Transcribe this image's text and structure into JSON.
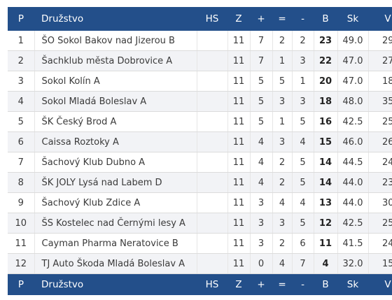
{
  "table": {
    "headers": {
      "pos": "P",
      "team": "Družstvo",
      "hs": "HS",
      "z": "Z",
      "plus": "+",
      "eq": "=",
      "minus": "-",
      "b": "B",
      "sk": "Sk",
      "v": "V"
    },
    "rows": [
      {
        "pos": "1",
        "team": "ŠO Sokol Bakov nad Jizerou B",
        "hs": "",
        "z": "11",
        "plus": "7",
        "eq": "2",
        "minus": "2",
        "b": "23",
        "sk": "49.0",
        "v": "29"
      },
      {
        "pos": "2",
        "team": "Šachklub města Dobrovice A",
        "hs": "",
        "z": "11",
        "plus": "7",
        "eq": "1",
        "minus": "3",
        "b": "22",
        "sk": "47.0",
        "v": "27"
      },
      {
        "pos": "3",
        "team": "Sokol Kolín A",
        "hs": "",
        "z": "11",
        "plus": "5",
        "eq": "5",
        "minus": "1",
        "b": "20",
        "sk": "47.0",
        "v": "18"
      },
      {
        "pos": "4",
        "team": "Sokol Mladá Boleslav A",
        "hs": "",
        "z": "11",
        "plus": "5",
        "eq": "3",
        "minus": "3",
        "b": "18",
        "sk": "48.0",
        "v": "35"
      },
      {
        "pos": "5",
        "team": "ŠK Český Brod A",
        "hs": "",
        "z": "11",
        "plus": "5",
        "eq": "1",
        "minus": "5",
        "b": "16",
        "sk": "42.5",
        "v": "25"
      },
      {
        "pos": "6",
        "team": "Caissa Roztoky A",
        "hs": "",
        "z": "11",
        "plus": "4",
        "eq": "3",
        "minus": "4",
        "b": "15",
        "sk": "46.0",
        "v": "26"
      },
      {
        "pos": "7",
        "team": "Šachový Klub Dubno A",
        "hs": "",
        "z": "11",
        "plus": "4",
        "eq": "2",
        "minus": "5",
        "b": "14",
        "sk": "44.5",
        "v": "24"
      },
      {
        "pos": "8",
        "team": "ŠK JOLY Lysá nad Labem D",
        "hs": "",
        "z": "11",
        "plus": "4",
        "eq": "2",
        "minus": "5",
        "b": "14",
        "sk": "44.0",
        "v": "23"
      },
      {
        "pos": "9",
        "team": "Šachový Klub Zdice A",
        "hs": "",
        "z": "11",
        "plus": "3",
        "eq": "4",
        "minus": "4",
        "b": "13",
        "sk": "44.0",
        "v": "30"
      },
      {
        "pos": "10",
        "team": "ŠS Kostelec nad Černými lesy A",
        "hs": "",
        "z": "11",
        "plus": "3",
        "eq": "3",
        "minus": "5",
        "b": "12",
        "sk": "42.5",
        "v": "25"
      },
      {
        "pos": "11",
        "team": "Cayman Pharma Neratovice B",
        "hs": "",
        "z": "11",
        "plus": "3",
        "eq": "2",
        "minus": "6",
        "b": "11",
        "sk": "41.5",
        "v": "24"
      },
      {
        "pos": "12",
        "team": "TJ Auto Škoda Mladá Boleslav A",
        "hs": "",
        "z": "11",
        "plus": "0",
        "eq": "4",
        "minus": "7",
        "b": "4",
        "sk": "32.0",
        "v": "15"
      }
    ]
  },
  "colors": {
    "header_bg": "#234f8a",
    "header_text": "#ffffff",
    "row_even_bg": "#f2f3f6",
    "row_odd_bg": "#ffffff"
  }
}
